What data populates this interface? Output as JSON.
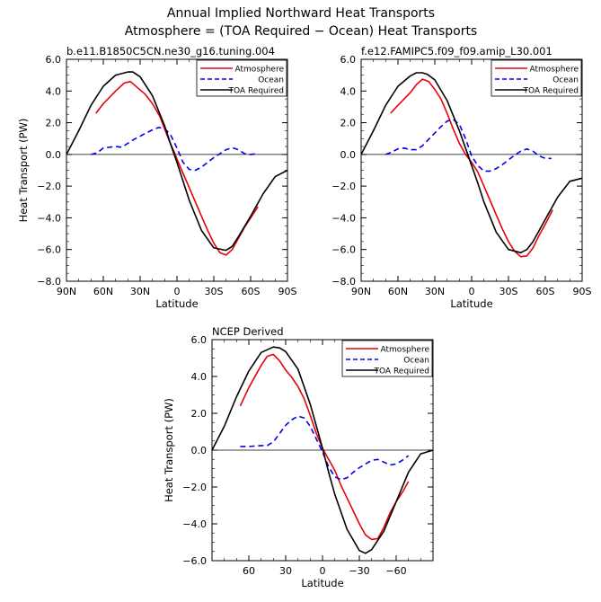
{
  "figure": {
    "title_line1": "Annual Implied Northward Heat Transports",
    "title_line2": "Atmosphere = (TOA Required − Ocean) Heat Transports"
  },
  "chart_data": [
    {
      "type": "line",
      "title": "b.e11.B1850C5CN.ne30_g16.tuning.004",
      "xlabel": "Latitude",
      "ylabel": "Heat Transport (PW)",
      "xlim": [
        90,
        -90
      ],
      "ylim": [
        -8,
        6
      ],
      "yticks": [
        6,
        4,
        2,
        0,
        -2,
        -4,
        -6,
        -8
      ],
      "ytick_labels": [
        "6.0",
        "4.0",
        "2.0",
        "0.0",
        "−2.0",
        "−4.0",
        "−6.0",
        "−8.0"
      ],
      "xticks": [
        90,
        60,
        30,
        0,
        -30,
        -60,
        -90
      ],
      "xtick_labels": [
        "90N",
        "60N",
        "30N",
        "0",
        "30S",
        "60S",
        "90S"
      ],
      "zero_line": true,
      "legend_position": "top-right",
      "series": [
        {
          "name": "Atmosphere",
          "color": "#e8000b",
          "dash": "solid",
          "x": [
            66,
            60,
            50,
            43,
            38,
            32,
            26,
            20,
            14,
            10,
            6,
            2,
            0,
            -5,
            -10,
            -15,
            -20,
            -25,
            -30,
            -35,
            -40,
            -45,
            -50,
            -55,
            -60,
            -66
          ],
          "y": [
            2.6,
            3.2,
            4.0,
            4.5,
            4.6,
            4.2,
            3.8,
            3.2,
            2.4,
            1.6,
            0.8,
            0.1,
            -0.3,
            -1.2,
            -2.1,
            -3.0,
            -3.9,
            -4.8,
            -5.6,
            -6.2,
            -6.35,
            -6.0,
            -5.3,
            -4.6,
            -4.0,
            -3.3
          ]
        },
        {
          "name": "Ocean",
          "color": "#0000ee",
          "dash": "dashed",
          "x": [
            70,
            65,
            60,
            50,
            45,
            40,
            35,
            30,
            25,
            20,
            15,
            10,
            5,
            0,
            -5,
            -10,
            -15,
            -20,
            -25,
            -30,
            -35,
            -40,
            -45,
            -50,
            -55,
            -60,
            -65
          ],
          "y": [
            0,
            0.1,
            0.4,
            0.5,
            0.45,
            0.7,
            0.95,
            1.15,
            1.35,
            1.55,
            1.7,
            1.65,
            1.2,
            0.4,
            -0.5,
            -0.95,
            -1.0,
            -0.8,
            -0.5,
            -0.2,
            0.05,
            0.3,
            0.42,
            0.3,
            0.05,
            0.0,
            0.05
          ]
        },
        {
          "name": "TOA Required",
          "color": "#000000",
          "dash": "solid",
          "x": [
            90,
            80,
            70,
            60,
            50,
            40,
            36,
            30,
            20,
            10,
            5,
            0,
            -5,
            -10,
            -20,
            -30,
            -40,
            -45,
            -50,
            -60,
            -70,
            -80,
            -90
          ],
          "y": [
            0,
            1.5,
            3.1,
            4.3,
            5.0,
            5.2,
            5.2,
            4.9,
            3.7,
            1.8,
            0.6,
            -0.5,
            -1.7,
            -2.9,
            -4.8,
            -5.9,
            -6.05,
            -5.8,
            -5.2,
            -3.9,
            -2.5,
            -1.4,
            -1.0
          ]
        }
      ]
    },
    {
      "type": "line",
      "title": "f.e12.FAMIPC5.f09_f09.amip_L30.001",
      "xlabel": "Latitude",
      "ylabel": "",
      "xlim": [
        90,
        -90
      ],
      "ylim": [
        -8,
        6
      ],
      "yticks": [
        6,
        4,
        2,
        0,
        -2,
        -4,
        -6,
        -8
      ],
      "ytick_labels": [
        "6.0",
        "4.0",
        "2.0",
        "0.0",
        "−2.0",
        "−4.0",
        "−6.0",
        "−8.0"
      ],
      "xticks": [
        90,
        60,
        30,
        0,
        -30,
        -60,
        -90
      ],
      "xtick_labels": [
        "90N",
        "60N",
        "30N",
        "0",
        "30S",
        "60S",
        "90S"
      ],
      "zero_line": true,
      "legend_position": "top-right",
      "series": [
        {
          "name": "Atmosphere",
          "color": "#e8000b",
          "dash": "solid",
          "x": [
            66,
            60,
            50,
            45,
            40,
            35,
            30,
            25,
            20,
            15,
            10,
            5,
            0,
            -5,
            -10,
            -15,
            -20,
            -25,
            -30,
            -35,
            -40,
            -45,
            -50,
            -55,
            -60,
            -66
          ],
          "y": [
            2.6,
            3.1,
            3.9,
            4.4,
            4.75,
            4.6,
            4.1,
            3.5,
            2.6,
            1.6,
            0.7,
            0.0,
            -0.5,
            -1.1,
            -2.0,
            -2.9,
            -3.8,
            -4.7,
            -5.5,
            -6.1,
            -6.45,
            -6.4,
            -5.9,
            -5.1,
            -4.4,
            -3.5
          ]
        },
        {
          "name": "Ocean",
          "color": "#0000ee",
          "dash": "dashed",
          "x": [
            70,
            65,
            60,
            55,
            50,
            45,
            40,
            35,
            30,
            25,
            20,
            15,
            10,
            5,
            0,
            -5,
            -10,
            -15,
            -20,
            -25,
            -30,
            -35,
            -40,
            -45,
            -50,
            -55,
            -60,
            -65
          ],
          "y": [
            0,
            0.15,
            0.35,
            0.4,
            0.3,
            0.3,
            0.55,
            0.95,
            1.35,
            1.75,
            2.1,
            2.2,
            1.9,
            1.0,
            -0.1,
            -0.7,
            -1.05,
            -1.05,
            -0.9,
            -0.65,
            -0.35,
            -0.05,
            0.2,
            0.35,
            0.2,
            -0.1,
            -0.25,
            -0.25
          ]
        },
        {
          "name": "TOA Required",
          "color": "#000000",
          "dash": "solid",
          "x": [
            90,
            80,
            70,
            60,
            50,
            45,
            40,
            36,
            30,
            20,
            10,
            5,
            0,
            -5,
            -10,
            -20,
            -30,
            -40,
            -45,
            -50,
            -60,
            -70,
            -80,
            -90
          ],
          "y": [
            0,
            1.5,
            3.1,
            4.3,
            4.95,
            5.15,
            5.15,
            5.05,
            4.7,
            3.4,
            1.5,
            0.4,
            -0.7,
            -1.8,
            -3.0,
            -4.9,
            -6.0,
            -6.2,
            -6.0,
            -5.5,
            -4.1,
            -2.7,
            -1.7,
            -1.5
          ]
        }
      ]
    },
    {
      "type": "line",
      "title": "NCEP Derived",
      "xlabel": "Latitude",
      "ylabel": "Heat Transport (PW)",
      "xlim": [
        90,
        -90
      ],
      "ylim": [
        -6,
        6
      ],
      "yticks": [
        6,
        4,
        2,
        0,
        -2,
        -4,
        -6
      ],
      "ytick_labels": [
        "6.0",
        "4.0",
        "2.0",
        "0.0",
        "−2.0",
        "−4.0",
        "−6.0"
      ],
      "xticks": [
        60,
        30,
        0,
        -30,
        -60
      ],
      "xtick_labels": [
        "60",
        "30",
        "0",
        "−30",
        "−60"
      ],
      "zero_line": true,
      "legend_position": "top-right",
      "series": [
        {
          "name": "Atmosphere",
          "color": "#e8000b",
          "dash": "solid",
          "x": [
            67,
            60,
            50,
            45,
            40,
            35,
            30,
            25,
            20,
            15,
            10,
            5,
            0,
            -5,
            -10,
            -15,
            -20,
            -25,
            -30,
            -35,
            -40,
            -45,
            -50,
            -55,
            -60,
            -65,
            -70
          ],
          "y": [
            2.4,
            3.4,
            4.6,
            5.1,
            5.2,
            4.85,
            4.35,
            3.95,
            3.45,
            2.8,
            1.9,
            0.9,
            0.1,
            -0.5,
            -1.1,
            -1.9,
            -2.6,
            -3.3,
            -4.0,
            -4.6,
            -4.85,
            -4.8,
            -4.2,
            -3.4,
            -2.8,
            -2.3,
            -1.7
          ]
        },
        {
          "name": "Ocean",
          "color": "#0000ee",
          "dash": "dashed",
          "x": [
            67,
            60,
            50,
            45,
            40,
            35,
            30,
            25,
            20,
            15,
            10,
            5,
            0,
            -5,
            -10,
            -15,
            -20,
            -25,
            -30,
            -35,
            -40,
            -45,
            -50,
            -55,
            -60,
            -65,
            -70
          ],
          "y": [
            0.2,
            0.2,
            0.25,
            0.25,
            0.45,
            0.9,
            1.35,
            1.65,
            1.85,
            1.75,
            1.3,
            0.6,
            -0.1,
            -0.9,
            -1.45,
            -1.6,
            -1.5,
            -1.2,
            -0.95,
            -0.75,
            -0.55,
            -0.5,
            -0.65,
            -0.8,
            -0.75,
            -0.55,
            -0.3
          ]
        },
        {
          "name": "TOA Required",
          "color": "#000000",
          "dash": "solid",
          "x": [
            90,
            80,
            70,
            60,
            50,
            40,
            35,
            30,
            20,
            10,
            5,
            0,
            -5,
            -10,
            -20,
            -30,
            -35,
            -40,
            -50,
            -60,
            -70,
            -80,
            -90
          ],
          "y": [
            0,
            1.3,
            2.9,
            4.3,
            5.3,
            5.6,
            5.55,
            5.35,
            4.4,
            2.5,
            1.3,
            0.1,
            -1.2,
            -2.4,
            -4.3,
            -5.45,
            -5.6,
            -5.4,
            -4.4,
            -2.8,
            -1.2,
            -0.2,
            0
          ]
        }
      ]
    }
  ]
}
